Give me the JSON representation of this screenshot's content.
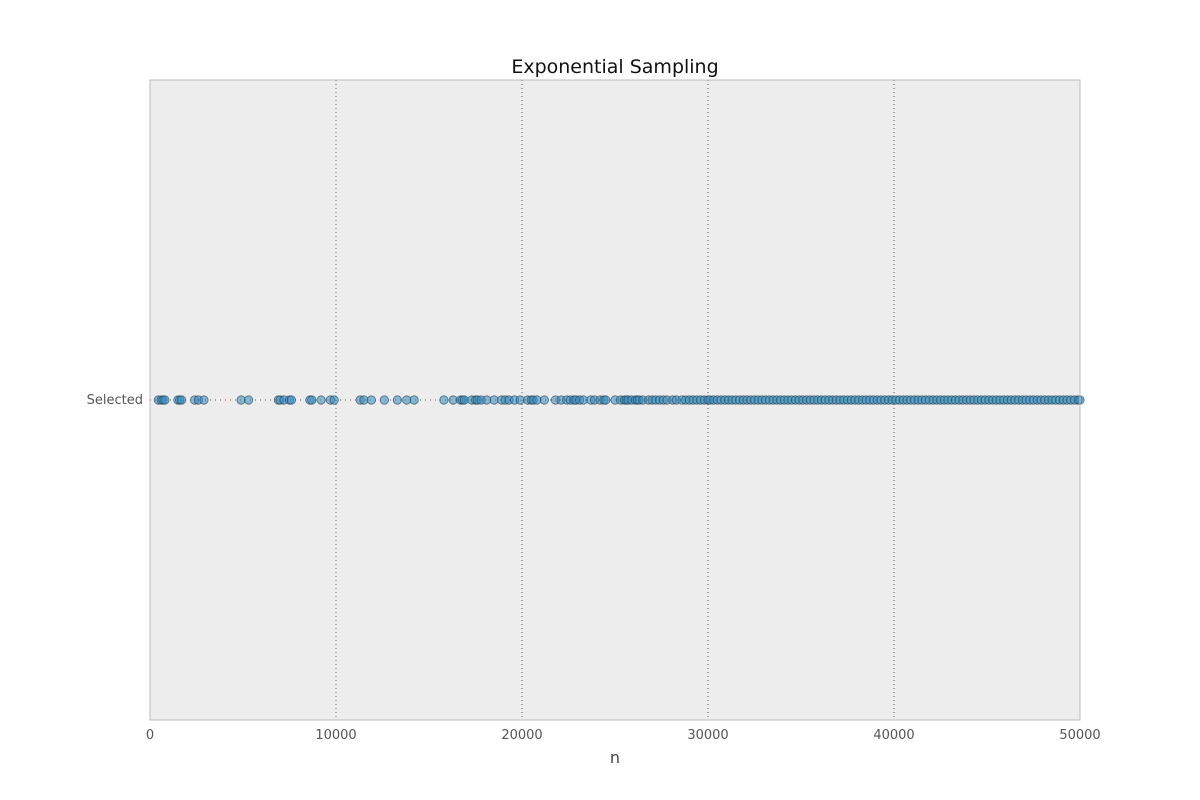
{
  "chart_data": {
    "type": "scatter",
    "title": "Exponential Sampling",
    "xlabel": "n",
    "ylabel": "",
    "xlim": [
      0,
      50000
    ],
    "xticks": [
      0,
      10000,
      20000,
      30000,
      40000,
      50000
    ],
    "xtick_labels": [
      "0",
      "10000",
      "20000",
      "30000",
      "40000",
      "50000"
    ],
    "ytick_labels": [
      "Selected"
    ],
    "grid": true,
    "colors": {
      "background": "#ededed",
      "marker_fill": "#348abd",
      "marker_edge": "#2a4a5f",
      "grid": "#555555",
      "frame": "#bcbcbc"
    },
    "series": [
      {
        "category": "Selected",
        "x": [
          450,
          600,
          700,
          800,
          1500,
          1600,
          1700,
          2400,
          2600,
          2900,
          4900,
          5300,
          6900,
          7000,
          7200,
          7500,
          7600,
          8600,
          8700,
          9200,
          9700,
          9900,
          11300,
          11500,
          11900,
          12600,
          13300,
          13800,
          14200,
          15800,
          16300,
          16700,
          16800,
          16900,
          17300,
          17500,
          17600,
          17800,
          18100,
          18500,
          18900,
          19100,
          19300,
          19600,
          19900,
          20300,
          20500,
          20600,
          20800,
          21200,
          21800,
          22100,
          22400,
          22600,
          22800,
          22900,
          23100,
          23300,
          23700,
          23900,
          24200,
          24400,
          24500,
          25000,
          25300,
          25500,
          25600,
          25700,
          25900,
          26100,
          26200,
          26300,
          26500,
          26800,
          27000,
          27200,
          27400,
          27600,
          27800,
          28100,
          28300,
          28600,
          28800,
          29000,
          29200,
          29400,
          29600,
          29800,
          30000,
          30100,
          30300,
          30500,
          30700,
          30900,
          31100,
          31300,
          31500,
          31700,
          31900,
          32100,
          32300,
          32500,
          32700,
          32900,
          33100,
          33300,
          33500,
          33700,
          33900,
          34100,
          34300,
          34500,
          34700,
          34900,
          35100,
          35300,
          35500,
          35700,
          35900,
          36100,
          36300,
          36500,
          36700,
          36900,
          37100,
          37300,
          37500,
          37700,
          37900,
          38100,
          38300,
          38500,
          38700,
          38900,
          39100,
          39300,
          39500,
          39700,
          39900,
          40100,
          40300,
          40500,
          40700,
          40900,
          41100,
          41300,
          41500,
          41700,
          41900,
          42100,
          42300,
          42500,
          42700,
          42900,
          43100,
          43300,
          43500,
          43700,
          43900,
          44100,
          44300,
          44500,
          44700,
          44900,
          45100,
          45300,
          45500,
          45700,
          45900,
          46100,
          46300,
          46500,
          46700,
          46900,
          47100,
          47300,
          47500,
          47700,
          47900,
          48100,
          48300,
          48500,
          48700,
          48900,
          49100,
          49300,
          49500,
          49700,
          49900,
          50000
        ]
      }
    ]
  }
}
